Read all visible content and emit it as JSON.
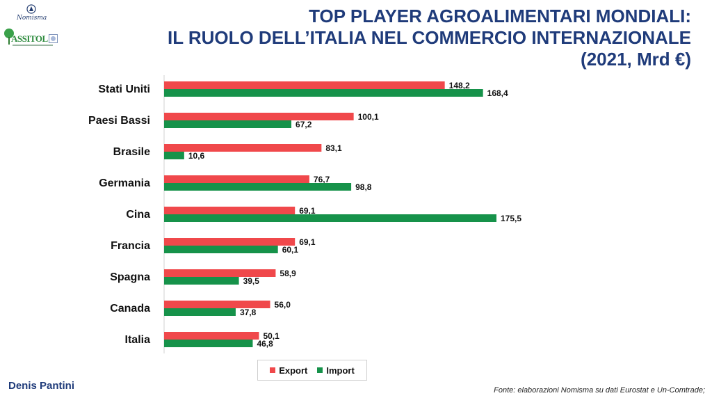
{
  "logos": {
    "nomisma": "Nomisma",
    "assitol": "ASSITOL"
  },
  "title": {
    "line1": "TOP PLAYER AGROALIMENTARI MONDIALI:",
    "line2": "IL RUOLO DELL’ITALIA NEL COMMERCIO INTERNAZIONALE",
    "line3": "(2021, Mrd €)"
  },
  "colors": {
    "export": "#f0484b",
    "import": "#16924a",
    "title": "#1f3b7a"
  },
  "chart_data": {
    "type": "bar",
    "orientation": "horizontal",
    "title": "TOP PLAYER AGROALIMENTARI MONDIALI: IL RUOLO DELL’ITALIA NEL COMMERCIO INTERNAZIONALE (2021, Mrd €)",
    "categories": [
      "Stati Uniti",
      "Paesi Bassi",
      "Brasile",
      "Germania",
      "Cina",
      "Francia",
      "Spagna",
      "Canada",
      "Italia"
    ],
    "series": [
      {
        "name": "Export",
        "values": [
          148.2,
          100.1,
          83.1,
          76.7,
          69.1,
          69.1,
          58.9,
          56.0,
          50.1
        ],
        "labels": [
          "148,2",
          "100,1",
          "83,1",
          "76,7",
          "69,1",
          "69,1",
          "58,9",
          "56,0",
          "50,1"
        ]
      },
      {
        "name": "Import",
        "values": [
          168.4,
          67.2,
          10.6,
          98.8,
          175.5,
          60.1,
          39.5,
          37.8,
          46.8
        ],
        "labels": [
          "168,4",
          "67,2",
          "10,6",
          "98,8",
          "175,5",
          "60,1",
          "39,5",
          "37,8",
          "46,8"
        ]
      }
    ],
    "xlim": [
      0,
      175.5
    ],
    "grid": false,
    "legend": "bottom"
  },
  "legend": {
    "export_label": "Export",
    "import_label": "Import"
  },
  "footer": {
    "author": "Denis Pantini",
    "source": "Fonte: elaborazioni Nomisma su dati Eurostat e Un-Comtrade;"
  }
}
